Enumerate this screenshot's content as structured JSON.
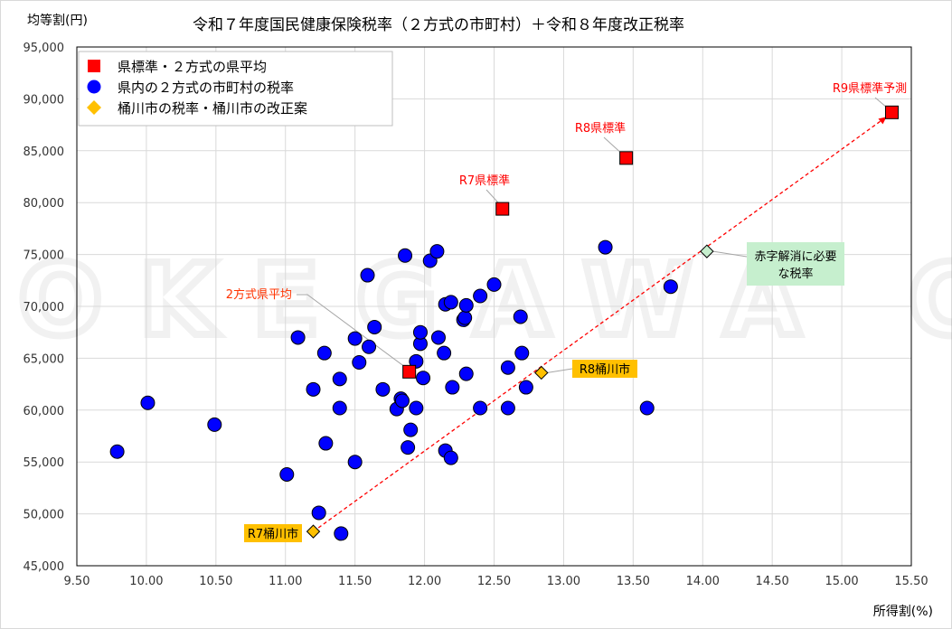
{
  "chart_data": {
    "type": "scatter",
    "title": "令和７年度国民健康保険税率（２方式の市町村）＋令和８年度改正税率",
    "xlabel": "所得割(%)",
    "ylabel": "均等割(円)",
    "xlim": [
      9.5,
      15.5
    ],
    "ylim": [
      45000,
      95000
    ],
    "xticks": [
      "9.50",
      "10.00",
      "10.50",
      "11.00",
      "11.50",
      "12.00",
      "12.50",
      "13.00",
      "13.50",
      "14.00",
      "14.50",
      "15.00",
      "15.50"
    ],
    "yticks": [
      "45,000",
      "50,000",
      "55,000",
      "60,000",
      "65,000",
      "70,000",
      "75,000",
      "80,000",
      "85,000",
      "90,000",
      "95,000"
    ],
    "grid": true,
    "legend_placement": "top-left",
    "watermark": "OKEGAWA CITY",
    "colors": {
      "red": "#ff0000",
      "blue": "#0000ff",
      "yellow": "#ffc000",
      "green": "#c6efce",
      "trend": "#ff0000"
    },
    "series": [
      {
        "name": "県標準・２方式の県平均",
        "marker": "square",
        "color": "#ff0000",
        "points": [
          {
            "x": 11.89,
            "y": 63700,
            "label": "2方式県平均"
          },
          {
            "x": 12.56,
            "y": 79400,
            "label": "R7県標準"
          },
          {
            "x": 13.45,
            "y": 84300,
            "label": "R8県標準"
          },
          {
            "x": 15.36,
            "y": 88700,
            "label": "R9県標準予測"
          }
        ]
      },
      {
        "name": "県内の２方式の市町村の税率",
        "marker": "circle",
        "color": "#0000ff",
        "points": [
          {
            "x": 9.79,
            "y": 56000
          },
          {
            "x": 10.01,
            "y": 60700
          },
          {
            "x": 10.49,
            "y": 58600
          },
          {
            "x": 11.01,
            "y": 53800
          },
          {
            "x": 11.09,
            "y": 67000
          },
          {
            "x": 11.24,
            "y": 50100
          },
          {
            "x": 11.28,
            "y": 65500
          },
          {
            "x": 11.2,
            "y": 62000
          },
          {
            "x": 11.29,
            "y": 56800
          },
          {
            "x": 11.39,
            "y": 63000
          },
          {
            "x": 11.39,
            "y": 60200
          },
          {
            "x": 11.4,
            "y": 48100
          },
          {
            "x": 11.5,
            "y": 55000
          },
          {
            "x": 11.5,
            "y": 66900
          },
          {
            "x": 11.53,
            "y": 64600
          },
          {
            "x": 11.59,
            "y": 73000
          },
          {
            "x": 11.6,
            "y": 66100
          },
          {
            "x": 11.64,
            "y": 68000
          },
          {
            "x": 11.7,
            "y": 62000
          },
          {
            "x": 11.8,
            "y": 60100
          },
          {
            "x": 11.83,
            "y": 61100
          },
          {
            "x": 11.84,
            "y": 60900
          },
          {
            "x": 11.86,
            "y": 74900
          },
          {
            "x": 11.88,
            "y": 56400
          },
          {
            "x": 11.9,
            "y": 58100
          },
          {
            "x": 11.94,
            "y": 64700
          },
          {
            "x": 11.94,
            "y": 60200
          },
          {
            "x": 11.97,
            "y": 66400
          },
          {
            "x": 11.97,
            "y": 67500
          },
          {
            "x": 11.99,
            "y": 63100
          },
          {
            "x": 12.04,
            "y": 74400
          },
          {
            "x": 12.09,
            "y": 75300
          },
          {
            "x": 12.1,
            "y": 67000
          },
          {
            "x": 12.14,
            "y": 65500
          },
          {
            "x": 12.15,
            "y": 70200
          },
          {
            "x": 12.15,
            "y": 56100
          },
          {
            "x": 12.19,
            "y": 70400
          },
          {
            "x": 12.19,
            "y": 55400
          },
          {
            "x": 12.2,
            "y": 62200
          },
          {
            "x": 12.28,
            "y": 68700
          },
          {
            "x": 12.29,
            "y": 68900
          },
          {
            "x": 12.3,
            "y": 70100
          },
          {
            "x": 12.3,
            "y": 63500
          },
          {
            "x": 12.4,
            "y": 60200
          },
          {
            "x": 12.4,
            "y": 71000
          },
          {
            "x": 12.5,
            "y": 72100
          },
          {
            "x": 12.6,
            "y": 64100
          },
          {
            "x": 12.6,
            "y": 60200
          },
          {
            "x": 12.69,
            "y": 69000
          },
          {
            "x": 12.7,
            "y": 65500
          },
          {
            "x": 12.73,
            "y": 62200
          },
          {
            "x": 13.3,
            "y": 75700
          },
          {
            "x": 13.6,
            "y": 60200
          },
          {
            "x": 13.77,
            "y": 71900
          }
        ]
      },
      {
        "name": "桶川市の税率・桶川市の改正案",
        "marker": "diamond",
        "color": "#ffc000",
        "points": [
          {
            "x": 11.2,
            "y": 48300,
            "label": "R7桶川市"
          },
          {
            "x": 12.84,
            "y": 63600,
            "label": "R8桶川市"
          }
        ]
      }
    ],
    "extra_point": {
      "x": 14.03,
      "y": 75300,
      "marker": "diamond",
      "color": "#c6efce",
      "label_lines": [
        "赤字解消に必要",
        "な税率"
      ]
    },
    "trend_line": {
      "from": {
        "x": 11.2,
        "y": 48300
      },
      "to": {
        "x": 15.36,
        "y": 88700
      },
      "style": "dashed"
    }
  }
}
